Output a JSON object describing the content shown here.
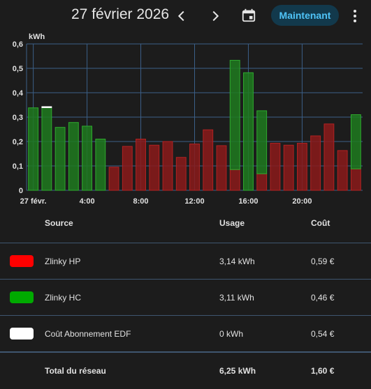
{
  "header": {
    "date": "27 février 2026",
    "prev_icon": "chevron-left-icon",
    "next_icon": "chevron-right-icon",
    "calendar_icon": "calendar-icon",
    "now_label": "Maintenant",
    "more_icon": "dots-vertical-icon"
  },
  "chart_data": {
    "type": "bar",
    "ylabel": "kWh",
    "ylim": [
      0,
      0.6
    ],
    "y_ticks": [
      "0",
      "0,1",
      "0,2",
      "0,3",
      "0,4",
      "0,5",
      "0,6"
    ],
    "x_ticks": [
      "27 févr.",
      "4:00",
      "8:00",
      "12:00",
      "16:00",
      "20:00"
    ],
    "grid": true,
    "series": [
      {
        "name": "Zlinky HP",
        "color": "#8b1a1a",
        "values": [
          0,
          0,
          0,
          0,
          0,
          0,
          0.095,
          0.18,
          0.21,
          0.185,
          0.2,
          0.135,
          0.19,
          0.248,
          0.183,
          0.085,
          0,
          0.068,
          0.193,
          0.185,
          0.193,
          0.223,
          0.272,
          0.163,
          0.088
        ]
      },
      {
        "name": "Zlinky HC",
        "color": "#1e7a1e",
        "values": [
          0.338,
          0.34,
          0.258,
          0.278,
          0.263,
          0.21,
          0,
          0,
          0,
          0,
          0,
          0,
          0,
          0,
          0,
          0.448,
          0.482,
          0.258,
          0,
          0,
          0,
          0,
          0,
          0,
          0.222
        ]
      },
      {
        "name": "Coût Abonnement EDF",
        "color": "#ffffff",
        "values": [
          0,
          0.003,
          0,
          0,
          0,
          0,
          0,
          0,
          0,
          0,
          0,
          0,
          0,
          0,
          0,
          0,
          0,
          0,
          0,
          0,
          0,
          0,
          0,
          0,
          0
        ]
      }
    ]
  },
  "table": {
    "headers": {
      "source": "Source",
      "usage": "Usage",
      "cost": "Coût"
    },
    "rows": [
      {
        "label": "Zlinky HP",
        "usage": "3,14 kWh",
        "cost": "0,59 €",
        "color": "#ff0000"
      },
      {
        "label": "Zlinky HC",
        "usage": "3,11 kWh",
        "cost": "0,46 €",
        "color": "#00aa00"
      },
      {
        "label": "Coût Abonnement EDF",
        "usage": "0 kWh",
        "cost": "0,54 €",
        "color": "#ffffff"
      }
    ],
    "total": {
      "label": "Total du réseau",
      "usage": "6,25 kWh",
      "cost": "1,60 €"
    }
  }
}
